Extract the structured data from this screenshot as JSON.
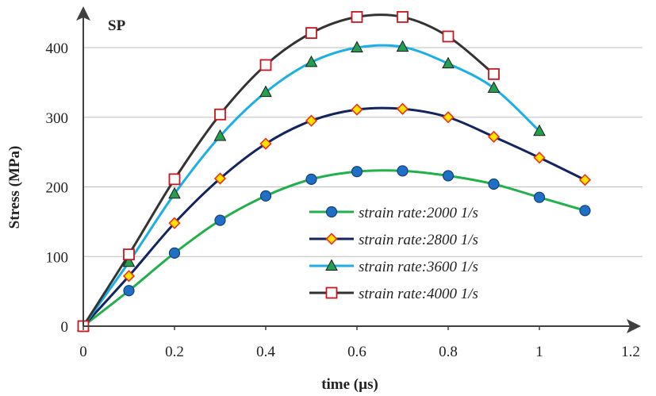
{
  "chart_data": {
    "type": "line",
    "title": "SP",
    "xlabel": "time (µs)",
    "ylabel": "Stress (MPa)",
    "xlim": [
      0,
      1.2
    ],
    "ylim": [
      0,
      450
    ],
    "xticks": [
      0,
      0.2,
      0.4,
      0.6,
      0.8,
      1,
      1.2
    ],
    "yticks": [
      0,
      100,
      200,
      300,
      400
    ],
    "xtick_labels": [
      "0",
      "0.2",
      "0.4",
      "0.6",
      "0.8",
      "1",
      "1.2"
    ],
    "ytick_labels": [
      "0",
      "100",
      "200",
      "300",
      "400"
    ],
    "grid": "horizontal",
    "legend_position": "bottom-right",
    "series": [
      {
        "name": "strain rate:2000 1/s",
        "color": "#22b04b",
        "marker": "circle",
        "marker_color": "#1f6fc4",
        "x": [
          0,
          0.1,
          0.2,
          0.3,
          0.4,
          0.5,
          0.6,
          0.7,
          0.8,
          0.9,
          1.0,
          1.1
        ],
        "y": [
          0,
          51,
          105,
          152,
          187,
          211,
          222,
          223,
          216,
          204,
          185,
          166
        ]
      },
      {
        "name": "strain rate:2800 1/s",
        "color": "#13245e",
        "marker": "diamond",
        "marker_color": "#ffe300",
        "marker_edge": "#e8321c",
        "x": [
          0,
          0.1,
          0.2,
          0.3,
          0.4,
          0.5,
          0.6,
          0.7,
          0.8,
          0.9,
          1.0,
          1.1
        ],
        "y": [
          0,
          72,
          148,
          212,
          262,
          295,
          311,
          312,
          300,
          272,
          242,
          210
        ]
      },
      {
        "name": "strain rate:3600 1/s",
        "color": "#1ab0e6",
        "marker": "triangle",
        "marker_color": "#22a050",
        "x": [
          0,
          0.1,
          0.2,
          0.3,
          0.4,
          0.5,
          0.6,
          0.7,
          0.8,
          0.9,
          1.0
        ],
        "y": [
          0,
          92,
          190,
          273,
          336,
          379,
          400,
          401,
          377,
          342,
          280
        ]
      },
      {
        "name": "strain rate:4000 1/s",
        "color": "#333333",
        "marker": "square",
        "marker_color": "#ffffff",
        "marker_edge": "#c8161d",
        "x": [
          0,
          0.1,
          0.2,
          0.3,
          0.4,
          0.5,
          0.6,
          0.7,
          0.8,
          0.9
        ],
        "y": [
          0,
          103,
          211,
          304,
          375,
          421,
          444,
          444,
          416,
          362
        ]
      }
    ]
  }
}
